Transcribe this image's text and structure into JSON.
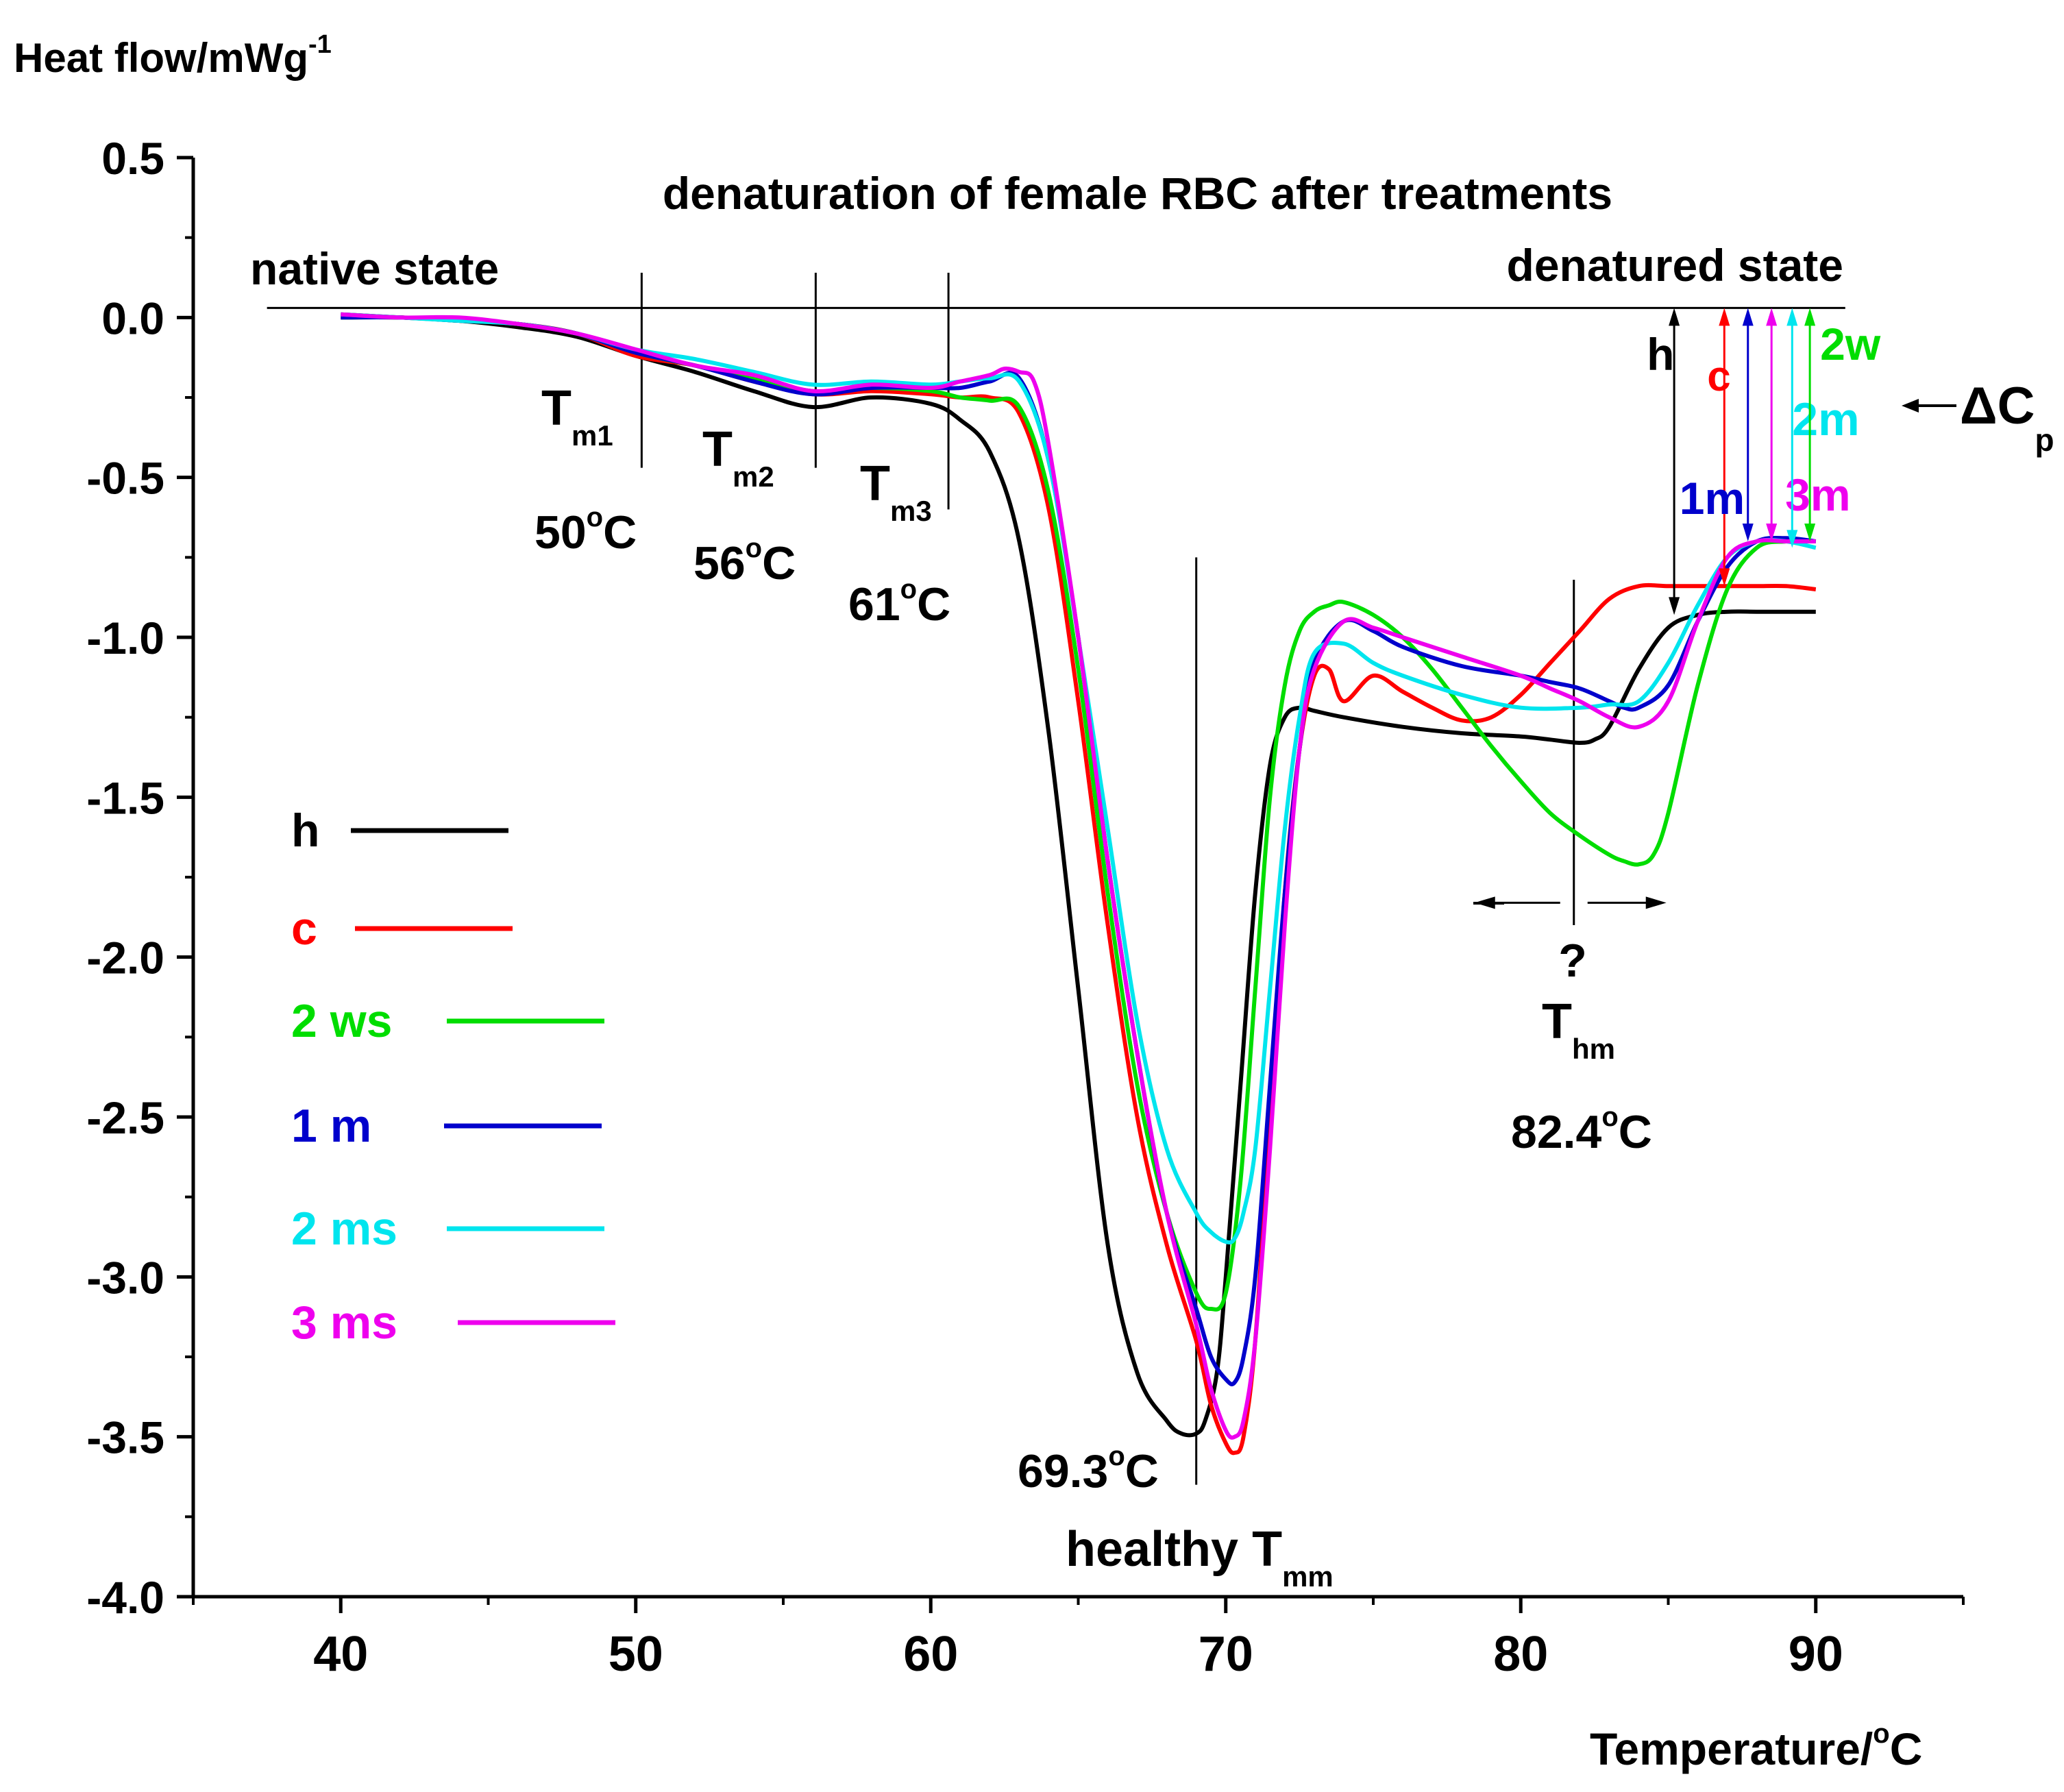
{
  "chart_data": {
    "type": "line",
    "title": "denaturation of female RBC after treatments",
    "ylabel_main": "Heat flow/mWg",
    "ylabel_sup": "-1",
    "xlabel_main": "Temperature/",
    "xlabel_sup": "o",
    "xlabel_tail": "C",
    "xlim": [
      35,
      95
    ],
    "ylim": [
      -4.0,
      0.5
    ],
    "x_ticks": [
      40,
      50,
      60,
      70,
      80,
      90
    ],
    "x_tick_labels": [
      "40",
      "50",
      "60",
      "70",
      "80",
      "90"
    ],
    "y_ticks": [
      0.5,
      0.0,
      -0.5,
      -1.0,
      -1.5,
      -2.0,
      -2.5,
      -3.0,
      -3.5,
      -4.0
    ],
    "y_tick_labels": [
      "0.5",
      "0.0",
      "-0.5",
      "-1.0",
      "-1.5",
      "-2.0",
      "-2.5",
      "-3.0",
      "-3.5",
      "-4.0"
    ],
    "baseline": {
      "x": [
        37.5,
        91.0
      ],
      "y": [
        0.03,
        0.03
      ]
    },
    "series": [
      {
        "name": "h",
        "legend_label": "h",
        "color": "#000000",
        "x": [
          40,
          42,
          44,
          46,
          48,
          50,
          52,
          54,
          56,
          58,
          60,
          61,
          62,
          63,
          64,
          65,
          66,
          67,
          68,
          68.5,
          69,
          69.3,
          69.7,
          70,
          70.5,
          71,
          71.5,
          72,
          72.5,
          73,
          74,
          76,
          78,
          80,
          81,
          82,
          82.5,
          83,
          84,
          85,
          86,
          87,
          88,
          89,
          90
        ],
        "y": [
          0.01,
          0.0,
          -0.01,
          -0.03,
          -0.06,
          -0.12,
          -0.17,
          -0.23,
          -0.28,
          -0.25,
          -0.27,
          -0.32,
          -0.42,
          -0.7,
          -1.3,
          -2.1,
          -2.9,
          -3.3,
          -3.45,
          -3.49,
          -3.49,
          -3.45,
          -3.3,
          -3.0,
          -2.4,
          -1.8,
          -1.4,
          -1.25,
          -1.22,
          -1.23,
          -1.25,
          -1.28,
          -1.3,
          -1.31,
          -1.32,
          -1.33,
          -1.32,
          -1.28,
          -1.1,
          -0.97,
          -0.93,
          -0.92,
          -0.92,
          -0.92,
          -0.92
        ]
      },
      {
        "name": "c",
        "legend_label": "c",
        "color": "#ff0000",
        "x": [
          40,
          42,
          44,
          46,
          48,
          50,
          52,
          54,
          56,
          58,
          60,
          61,
          62,
          63,
          64,
          65,
          66,
          67,
          68,
          69,
          69.5,
          70,
          70.3,
          70.6,
          71,
          71.5,
          72,
          72.5,
          73,
          73.5,
          74,
          75,
          76,
          77,
          78,
          79,
          80,
          81,
          82,
          83,
          84,
          85,
          86,
          87,
          88,
          89,
          90
        ],
        "y": [
          0.0,
          0.0,
          -0.01,
          -0.02,
          -0.05,
          -0.12,
          -0.15,
          -0.2,
          -0.24,
          -0.23,
          -0.24,
          -0.25,
          -0.25,
          -0.3,
          -0.6,
          -1.2,
          -1.9,
          -2.5,
          -2.9,
          -3.2,
          -3.4,
          -3.52,
          -3.55,
          -3.5,
          -3.2,
          -2.5,
          -1.8,
          -1.35,
          -1.12,
          -1.1,
          -1.2,
          -1.12,
          -1.17,
          -1.22,
          -1.26,
          -1.25,
          -1.18,
          -1.08,
          -0.98,
          -0.88,
          -0.84,
          -0.84,
          -0.84,
          -0.84,
          -0.84,
          -0.84,
          -0.85
        ]
      },
      {
        "name": "2 ws",
        "legend_label": "2 ws",
        "color": "#00dd00",
        "x": [
          40,
          42,
          44,
          46,
          48,
          50,
          52,
          54,
          56,
          58,
          60,
          61,
          62,
          63,
          64,
          65,
          66,
          67,
          68,
          69,
          69.5,
          70,
          70.5,
          71,
          71.5,
          72,
          72.5,
          73,
          73.5,
          74,
          75,
          76,
          77,
          78,
          79,
          80,
          81,
          82,
          83,
          83.5,
          84,
          84.5,
          85,
          86,
          87,
          88,
          89,
          90
        ],
        "y": [
          0.0,
          0.0,
          -0.01,
          -0.02,
          -0.05,
          -0.11,
          -0.15,
          -0.19,
          -0.23,
          -0.22,
          -0.23,
          -0.25,
          -0.26,
          -0.28,
          -0.55,
          -1.1,
          -1.8,
          -2.4,
          -2.8,
          -3.05,
          -3.1,
          -3.05,
          -2.7,
          -2.1,
          -1.5,
          -1.15,
          -0.98,
          -0.92,
          -0.9,
          -0.89,
          -0.93,
          -1.0,
          -1.1,
          -1.22,
          -1.34,
          -1.45,
          -1.55,
          -1.62,
          -1.68,
          -1.7,
          -1.71,
          -1.68,
          -1.55,
          -1.15,
          -0.85,
          -0.72,
          -0.7,
          -0.7
        ]
      },
      {
        "name": "1 m",
        "legend_label": "1 m",
        "color": "#0000cc",
        "x": [
          40,
          42,
          44,
          46,
          48,
          50,
          52,
          54,
          56,
          58,
          60,
          61,
          62,
          63,
          64,
          65,
          66,
          67,
          68,
          69,
          69.5,
          70,
          70.3,
          70.6,
          71,
          71.5,
          72,
          72.5,
          73,
          74,
          75,
          76,
          78,
          80,
          81,
          82,
          83,
          83.5,
          84,
          85,
          86,
          87,
          88,
          89,
          90
        ],
        "y": [
          0.0,
          0.0,
          -0.01,
          -0.02,
          -0.05,
          -0.11,
          -0.15,
          -0.2,
          -0.24,
          -0.22,
          -0.22,
          -0.22,
          -0.2,
          -0.19,
          -0.45,
          -1.0,
          -1.7,
          -2.3,
          -2.8,
          -3.1,
          -3.25,
          -3.32,
          -3.33,
          -3.25,
          -3.0,
          -2.4,
          -1.8,
          -1.35,
          -1.08,
          -0.95,
          -0.98,
          -1.03,
          -1.09,
          -1.12,
          -1.14,
          -1.16,
          -1.2,
          -1.22,
          -1.22,
          -1.15,
          -0.95,
          -0.78,
          -0.7,
          -0.69,
          -0.7
        ]
      },
      {
        "name": "2 ms",
        "legend_label": "2 ms",
        "color": "#00e5ee",
        "x": [
          40,
          42,
          44,
          46,
          48,
          50,
          52,
          54,
          56,
          58,
          60,
          61,
          62,
          63,
          64,
          65,
          66,
          67,
          68,
          69,
          69.5,
          70,
          70.3,
          70.6,
          71,
          71.5,
          72,
          72.5,
          73,
          74,
          75,
          76,
          78,
          80,
          82,
          83,
          84,
          85,
          86,
          87,
          88,
          89,
          90
        ],
        "y": [
          0.01,
          0.0,
          -0.01,
          -0.02,
          -0.05,
          -0.1,
          -0.13,
          -0.17,
          -0.21,
          -0.2,
          -0.21,
          -0.2,
          -0.19,
          -0.2,
          -0.45,
          -1.0,
          -1.6,
          -2.2,
          -2.6,
          -2.8,
          -2.86,
          -2.89,
          -2.88,
          -2.8,
          -2.6,
          -2.1,
          -1.6,
          -1.25,
          -1.05,
          -1.02,
          -1.08,
          -1.12,
          -1.18,
          -1.22,
          -1.22,
          -1.21,
          -1.2,
          -1.08,
          -0.9,
          -0.75,
          -0.7,
          -0.7,
          -0.72
        ]
      },
      {
        "name": "3 ms",
        "legend_label": "3 ms",
        "color": "#ee00ee",
        "x": [
          40,
          42,
          44,
          46,
          48,
          50,
          52,
          54,
          56,
          58,
          60,
          61,
          62,
          62.5,
          63,
          63.5,
          64,
          65,
          66,
          67,
          68,
          69,
          69.5,
          70,
          70.3,
          70.6,
          71,
          71.5,
          72,
          72.5,
          73,
          74,
          75,
          76,
          78,
          80,
          81,
          82,
          83,
          84,
          85,
          86,
          87,
          88,
          89,
          90
        ],
        "y": [
          0.01,
          0.0,
          0.0,
          -0.02,
          -0.05,
          -0.1,
          -0.15,
          -0.18,
          -0.23,
          -0.21,
          -0.22,
          -0.2,
          -0.18,
          -0.16,
          -0.17,
          -0.2,
          -0.4,
          -1.0,
          -1.7,
          -2.3,
          -2.8,
          -3.15,
          -3.35,
          -3.48,
          -3.5,
          -3.45,
          -3.2,
          -2.6,
          -1.9,
          -1.35,
          -1.1,
          -0.95,
          -0.97,
          -1.0,
          -1.06,
          -1.12,
          -1.16,
          -1.2,
          -1.25,
          -1.28,
          -1.2,
          -0.95,
          -0.75,
          -0.7,
          -0.7,
          -0.7
        ]
      }
    ],
    "markers": [
      {
        "x": 50.2,
        "ymin": -0.47,
        "ymax": 0.14
      },
      {
        "x": 56.1,
        "ymin": -0.47,
        "ymax": 0.14
      },
      {
        "x": 60.6,
        "ymin": -0.6,
        "ymax": 0.14
      },
      {
        "x": 69.0,
        "ymin": -3.65,
        "ymax": -0.75
      },
      {
        "x": 81.8,
        "ymin": -1.9,
        "ymax": -0.82
      }
    ],
    "transitions": [
      {
        "main": "T",
        "sub": "m1",
        "value": "50",
        "deg": "o",
        "unit": "C"
      },
      {
        "main": "T",
        "sub": "m2",
        "value": "56",
        "deg": "o",
        "unit": "C"
      },
      {
        "main": "T",
        "sub": "m3",
        "value": "61",
        "deg": "o",
        "unit": "C"
      },
      {
        "main": "T",
        "sub": "hm",
        "value": "82.4",
        "deg": "o",
        "unit": "C"
      }
    ],
    "annotations": {
      "native_state": "native state",
      "denatured_state": "denatured state",
      "question_mark": "?",
      "peak_value": "69.3",
      "peak_deg": "o",
      "peak_unit": "C",
      "healthy_main": "healthy T",
      "healthy_sub": "mm",
      "delta_cp_main": "ΔC",
      "delta_cp_sub": "p"
    },
    "delta_cp_arrows": [
      {
        "x": 85.2,
        "y_top": 0.03,
        "y_bottom": -0.93,
        "color": "#000000",
        "label": "h"
      },
      {
        "x": 86.9,
        "y_top": 0.03,
        "y_bottom": -0.84,
        "color": "#ff0000",
        "label": "c"
      },
      {
        "x": 87.7,
        "y_top": 0.03,
        "y_bottom": -0.7,
        "color": "#0000cc",
        "label": "1m"
      },
      {
        "x": 88.5,
        "y_top": 0.03,
        "y_bottom": -0.7,
        "color": "#ee00ee",
        "label": "3m"
      },
      {
        "x": 89.2,
        "y_top": 0.03,
        "y_bottom": -0.72,
        "color": "#00e5ee",
        "label": "2m"
      },
      {
        "x": 89.8,
        "y_top": 0.03,
        "y_bottom": -0.7,
        "color": "#00dd00",
        "label": "2w"
      }
    ]
  }
}
